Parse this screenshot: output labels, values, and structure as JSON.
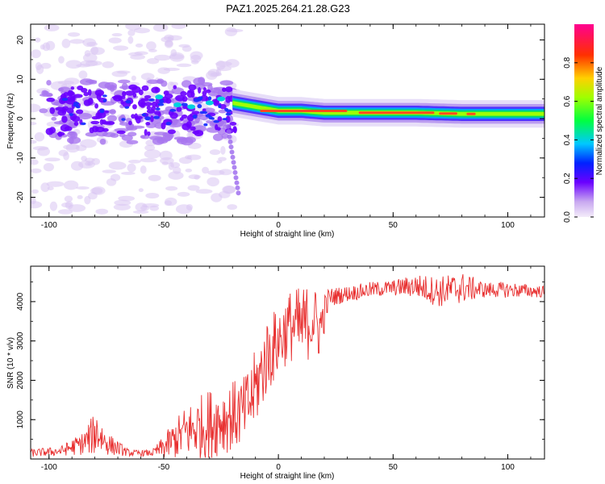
{
  "title": "PAZ1.2025.264.21.28.G23",
  "chart_data": [
    {
      "type": "heatmap",
      "xlabel": "Height of straight line (km)",
      "ylabel": "Frequency (Hz)",
      "xlim": [
        -108,
        116
      ],
      "ylim": [
        -25,
        24
      ],
      "xticks": [
        -100,
        -50,
        0,
        50,
        100
      ],
      "yticks": [
        -20,
        -10,
        0,
        10,
        20
      ],
      "tick_labels_x": [
        "-100",
        "-50",
        "0",
        "50",
        "100"
      ],
      "tick_labels_y": [
        "-20",
        "-10",
        "0",
        "10",
        "20"
      ],
      "colorbar": {
        "label": "Normalized spectral amplitude",
        "ticks": [
          0.0,
          0.2,
          0.4,
          0.6,
          0.8
        ],
        "tick_labels": [
          "0.0",
          "0.2",
          "0.4",
          "0.6",
          "0.8"
        ],
        "range": [
          0,
          1
        ]
      },
      "ridge": {
        "description_values": "dominant frequency line",
        "x": [
          -20,
          -10,
          0,
          10,
          20,
          40,
          60,
          80,
          116
        ],
        "freq": [
          4,
          3,
          2,
          2,
          1.5,
          1.5,
          1.5,
          1.2,
          1.2
        ]
      }
    },
    {
      "type": "line",
      "xlabel": "Height of straight line (km)",
      "ylabel": "SNR (10 * v/v)",
      "xlim": [
        -108,
        116
      ],
      "ylim": [
        0,
        4900
      ],
      "xticks": [
        -100,
        -50,
        0,
        50,
        100
      ],
      "yticks": [
        1000,
        2000,
        3000,
        4000
      ],
      "tick_labels_x": [
        "-100",
        "-50",
        "0",
        "50",
        "100"
      ],
      "tick_labels_y": [
        "1000",
        "2000",
        "3000",
        "4000"
      ],
      "color": "#e83030",
      "envelope": {
        "x": [
          -108,
          -95,
          -85,
          -79,
          -75,
          -65,
          -55,
          -50,
          -45,
          -40,
          -30,
          -20,
          -15,
          -12,
          -8,
          -5,
          0,
          5,
          10,
          15,
          18,
          22,
          30,
          40,
          50,
          60,
          70,
          80,
          90,
          100,
          116
        ],
        "mean": [
          150,
          200,
          400,
          700,
          400,
          150,
          150,
          300,
          500,
          700,
          900,
          1100,
          1200,
          1500,
          2100,
          2600,
          3000,
          3400,
          3300,
          3600,
          3300,
          4100,
          4200,
          4300,
          4350,
          4400,
          4250,
          4350,
          4300,
          4300,
          4250
        ],
        "amp": [
          100,
          120,
          300,
          600,
          300,
          80,
          80,
          300,
          500,
          700,
          900,
          900,
          900,
          1000,
          1000,
          1000,
          900,
          900,
          1100,
          900,
          800,
          250,
          200,
          200,
          200,
          300,
          400,
          400,
          200,
          200,
          150
        ]
      }
    }
  ]
}
